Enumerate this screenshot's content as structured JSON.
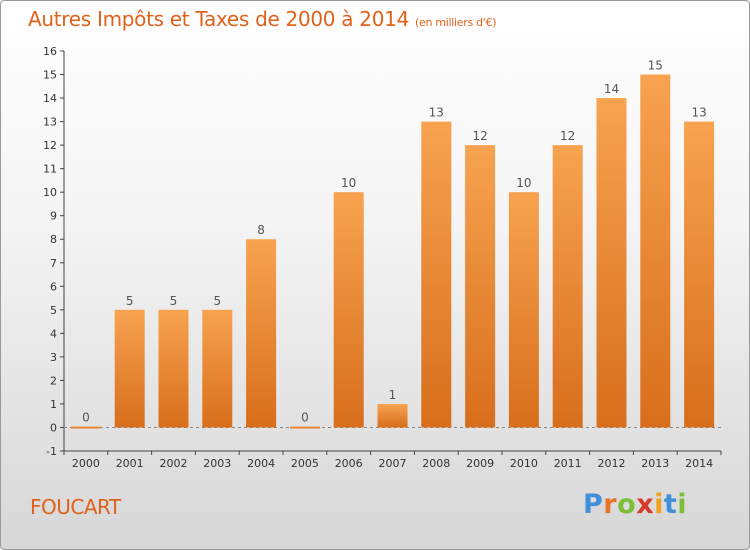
{
  "title": "Autres Impôts et Taxes de 2000 à 2014",
  "subtitle": "(en milliers d'€)",
  "commune": "FOUCART",
  "logo": {
    "letters": [
      "P",
      "r",
      "o",
      "x",
      "i",
      "t",
      "i"
    ]
  },
  "colors": {
    "accent": "#e0621a",
    "bar_light": "#f7a350",
    "bar_dark": "#d86e1c",
    "grid": "#d8d8d8"
  },
  "chart_data": {
    "type": "bar",
    "title": "Autres Impôts et Taxes de 2000 à 2014",
    "xlabel": "",
    "ylabel": "",
    "categories": [
      "2000",
      "2001",
      "2002",
      "2003",
      "2004",
      "2005",
      "2006",
      "2007",
      "2008",
      "2009",
      "2010",
      "2011",
      "2012",
      "2013",
      "2014"
    ],
    "values": [
      0,
      5,
      5,
      5,
      8,
      0,
      10,
      1,
      13,
      12,
      10,
      12,
      14,
      15,
      13
    ],
    "ylim": [
      -1,
      16
    ],
    "yticks": [
      -1,
      0,
      1,
      2,
      3,
      4,
      5,
      6,
      7,
      8,
      9,
      10,
      11,
      12,
      13,
      14,
      15,
      16
    ],
    "grid": false,
    "legend": "none"
  }
}
